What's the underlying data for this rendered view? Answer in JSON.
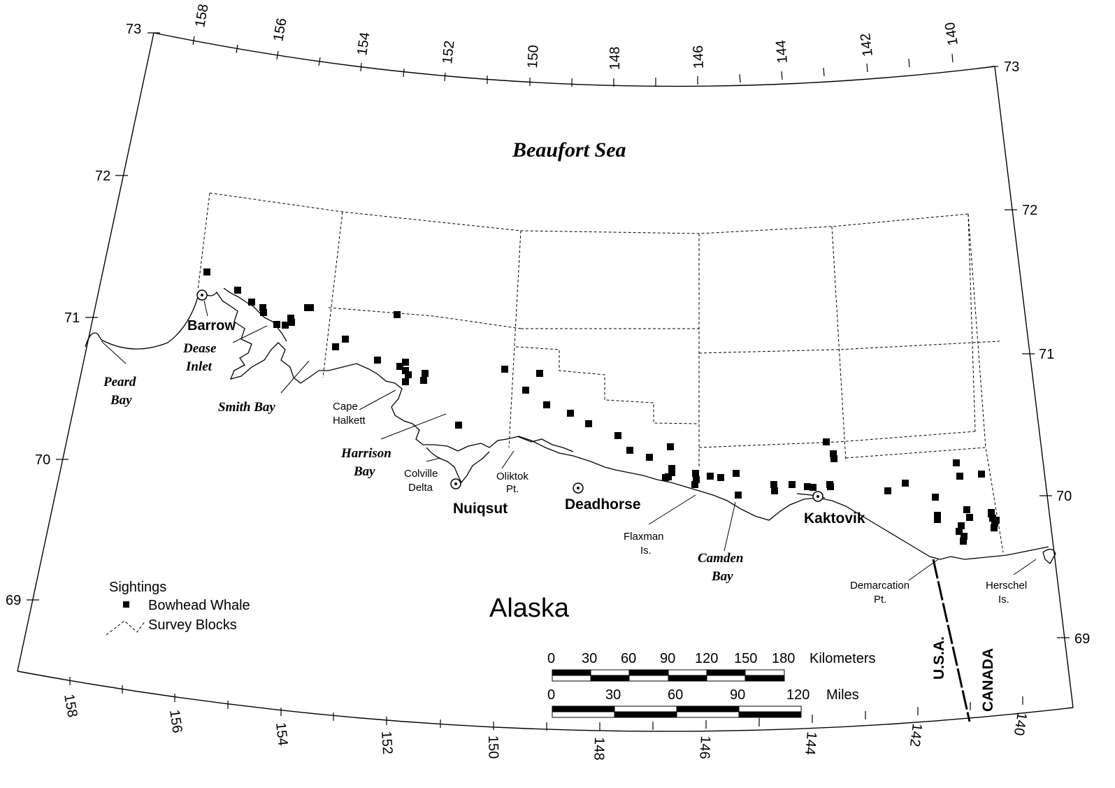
{
  "title": "Beaufort Sea",
  "land_label": "Alaska",
  "frame": {
    "top_lon_labels": [
      "158",
      "156",
      "154",
      "152",
      "150",
      "148",
      "146",
      "144",
      "142",
      "140"
    ],
    "bottom_lon_labels": [
      "158",
      "156",
      "154",
      "152",
      "150",
      "148",
      "146",
      "144",
      "142",
      "140"
    ],
    "left_lat_labels": [
      "73",
      "72",
      "71",
      "70",
      "69"
    ],
    "right_lat_labels": [
      "73",
      "72",
      "71",
      "70",
      "69"
    ]
  },
  "places": {
    "barrow": "Barrow",
    "nuiqsut": "Nuiqsut",
    "deadhorse": "Deadhorse",
    "kaktovik": "Kaktovik",
    "cape_halkett_1": "Cape",
    "cape_halkett_2": "Halkett",
    "colville_1": "Colville",
    "colville_2": "Delta",
    "oliktok_1": "Oliktok",
    "oliktok_2": "Pt.",
    "flaxman_1": "Flaxman",
    "flaxman_2": "Is.",
    "demarcation_1": "Demarcation",
    "demarcation_2": "Pt.",
    "herschel_1": "Herschel",
    "herschel_2": "Is.",
    "usa": "U.S.A.",
    "canada": "CANADA"
  },
  "water_bodies": {
    "dease_1": "Dease",
    "dease_2": "Inlet",
    "peard_1": "Peard",
    "peard_2": "Bay",
    "smith": "Smith Bay",
    "harrison_1": "Harrison",
    "harrison_2": "Bay",
    "camden_1": "Camden",
    "camden_2": "Bay"
  },
  "legend": {
    "title": "Sightings",
    "bowhead": "Bowhead Whale",
    "blocks": "Survey Blocks"
  },
  "scale_km": {
    "labels": [
      "0",
      "30",
      "60",
      "90",
      "120",
      "150",
      "180"
    ],
    "unit": "Kilometers"
  },
  "scale_mi": {
    "labels": [
      "0",
      "30",
      "60",
      "90",
      "120"
    ],
    "unit": "Miles"
  },
  "sightings_count": 74
}
